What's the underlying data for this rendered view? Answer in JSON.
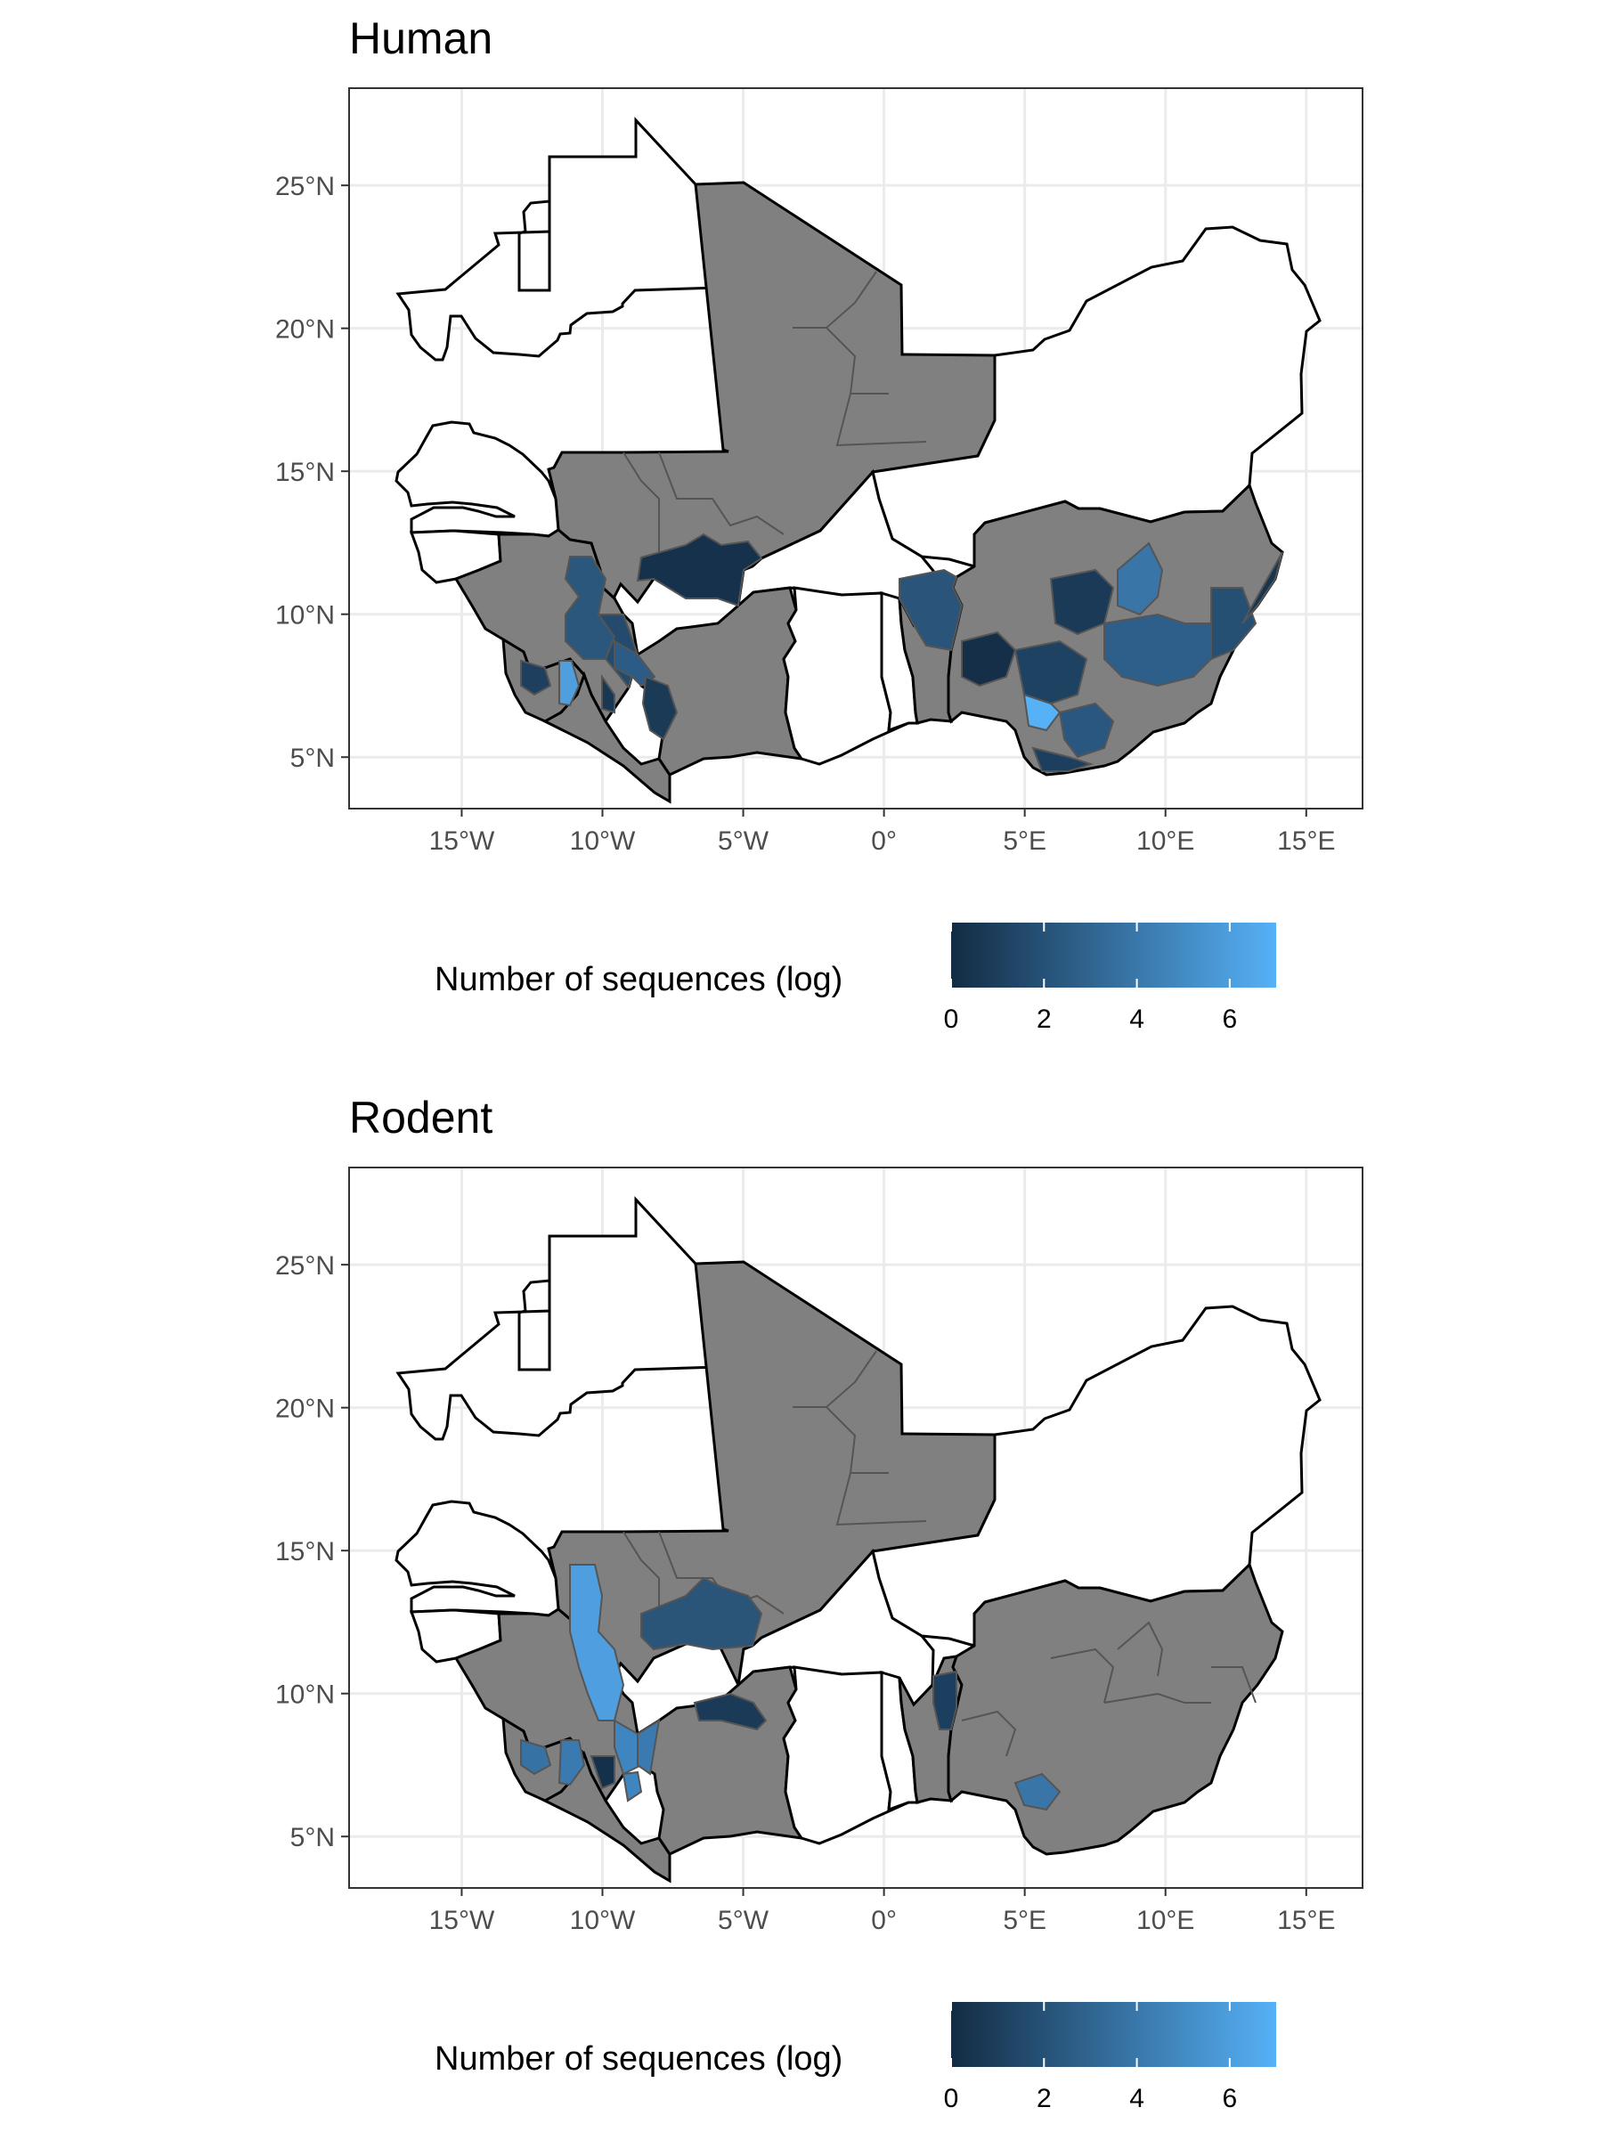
{
  "panels": [
    {
      "title": "Human",
      "legend": {
        "title": "Number of sequences (log)",
        "ticks": [
          "0",
          "2",
          "4",
          "6"
        ],
        "tick_values": [
          0,
          2,
          4,
          6
        ],
        "range": [
          0,
          7
        ],
        "color_low": "#132B43",
        "color_high": "#56B1F7"
      },
      "axes": {
        "x_ticks": [
          "15°W",
          "10°W",
          "5°W",
          "0°",
          "5°E",
          "10°E",
          "15°E"
        ],
        "x_values": [
          -15,
          -10,
          -5,
          0,
          5,
          10,
          15
        ],
        "y_ticks": [
          "5°N",
          "10°N",
          "15°N",
          "20°N",
          "25°N"
        ],
        "y_values": [
          5,
          10,
          15,
          20,
          25
        ],
        "x_range": [
          -19,
          17
        ],
        "y_range": [
          3.2,
          28.4
        ]
      }
    },
    {
      "title": "Rodent",
      "legend": {
        "title": "Number of sequences (log)",
        "ticks": [
          "0",
          "2",
          "4",
          "6"
        ],
        "tick_values": [
          0,
          2,
          4,
          6
        ],
        "range": [
          0,
          7
        ],
        "color_low": "#132B43",
        "color_high": "#56B1F7"
      },
      "axes": {
        "x_ticks": [
          "15°W",
          "10°W",
          "5°W",
          "0°",
          "5°E",
          "10°E",
          "15°E"
        ],
        "x_values": [
          -15,
          -10,
          -5,
          0,
          5,
          10,
          15
        ],
        "y_ticks": [
          "5°N",
          "10°N",
          "15°N",
          "20°N",
          "25°N"
        ],
        "y_values": [
          5,
          10,
          15,
          20,
          25
        ],
        "x_range": [
          -19,
          17
        ],
        "y_range": [
          3.2,
          28.4
        ]
      }
    }
  ],
  "colors": {
    "no_data_fill": "#808080",
    "outside_fill": "#ffffff",
    "border": "#000000",
    "gridline": "#ebebeb",
    "panel_border": "#333333"
  }
}
